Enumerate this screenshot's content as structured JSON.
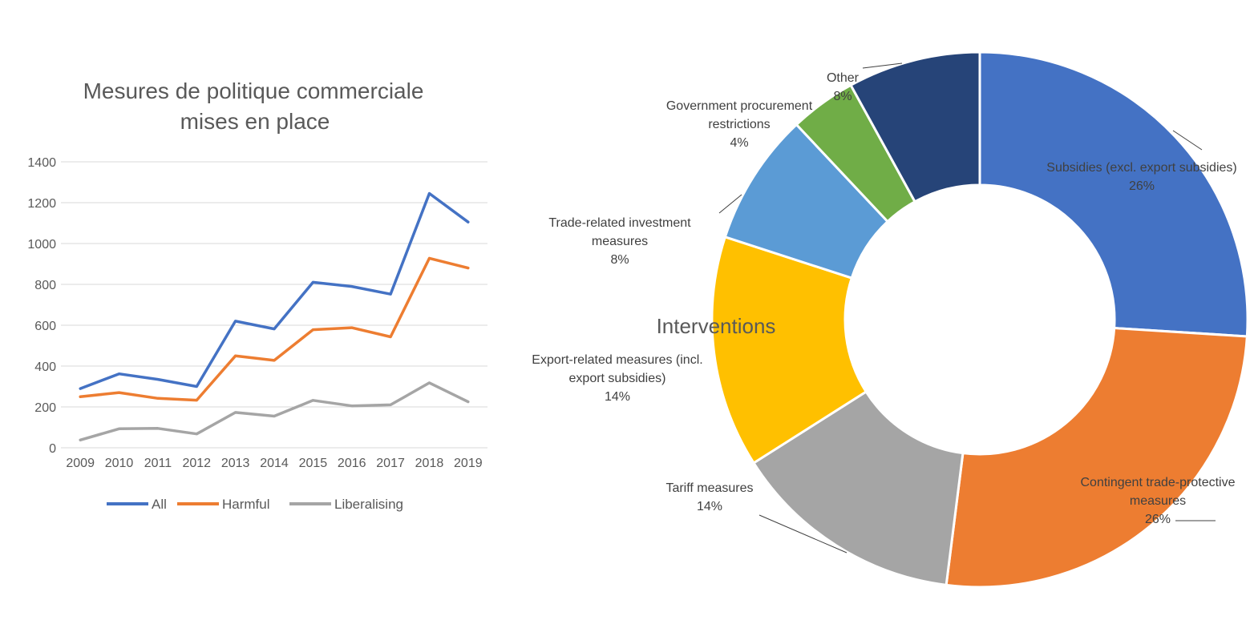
{
  "chart_data": [
    {
      "type": "line",
      "title": "Mesures de politique commerciale mises en place",
      "title_lines": [
        "Mesures de politique commerciale",
        "mises en place"
      ],
      "x": [
        "2009",
        "2010",
        "2011",
        "2012",
        "2013",
        "2014",
        "2015",
        "2016",
        "2017",
        "2018",
        "2019"
      ],
      "ylim": [
        0,
        1400
      ],
      "yticks": [
        "0",
        "200",
        "400",
        "600",
        "800",
        "1000",
        "1200",
        "1400"
      ],
      "ytick_values": [
        0,
        200,
        400,
        600,
        800,
        1000,
        1200,
        1400
      ],
      "grid": true,
      "legend_position": "bottom",
      "series": [
        {
          "name": "All",
          "color": "#4472C4",
          "values": [
            290,
            362,
            335,
            300,
            620,
            582,
            810,
            790,
            752,
            1245,
            1105
          ]
        },
        {
          "name": "Harmful",
          "color": "#ED7D31",
          "values": [
            250,
            270,
            242,
            233,
            450,
            428,
            578,
            588,
            543,
            928,
            880
          ]
        },
        {
          "name": "Liberalising",
          "color": "#A5A5A5",
          "values": [
            38,
            93,
            95,
            68,
            173,
            155,
            232,
            205,
            210,
            318,
            225
          ]
        }
      ]
    },
    {
      "type": "pie",
      "subtype": "donut",
      "title": "Interventions",
      "slices": [
        {
          "label_lines": [
            "Subsidies (excl. export subsidies)"
          ],
          "pct_label": "26%",
          "value": 26,
          "color": "#4472C4"
        },
        {
          "label_lines": [
            "Contingent trade-protective",
            "measures"
          ],
          "pct_label": "26%",
          "value": 26,
          "color": "#ED7D31"
        },
        {
          "label_lines": [
            "Tariff measures"
          ],
          "pct_label": "14%",
          "value": 14,
          "color": "#A5A5A5"
        },
        {
          "label_lines": [
            "Export-related measures (incl.",
            "export subsidies)"
          ],
          "pct_label": "14%",
          "value": 14,
          "color": "#FFC000"
        },
        {
          "label_lines": [
            "Trade-related investment",
            "measures"
          ],
          "pct_label": "8%",
          "value": 8,
          "color": "#5B9BD5"
        },
        {
          "label_lines": [
            "Government procurement",
            "restrictions"
          ],
          "pct_label": "4%",
          "value": 4,
          "color": "#70AD47"
        },
        {
          "label_lines": [
            "Other"
          ],
          "pct_label": "8%",
          "value": 8,
          "color": "#264478"
        }
      ]
    }
  ]
}
